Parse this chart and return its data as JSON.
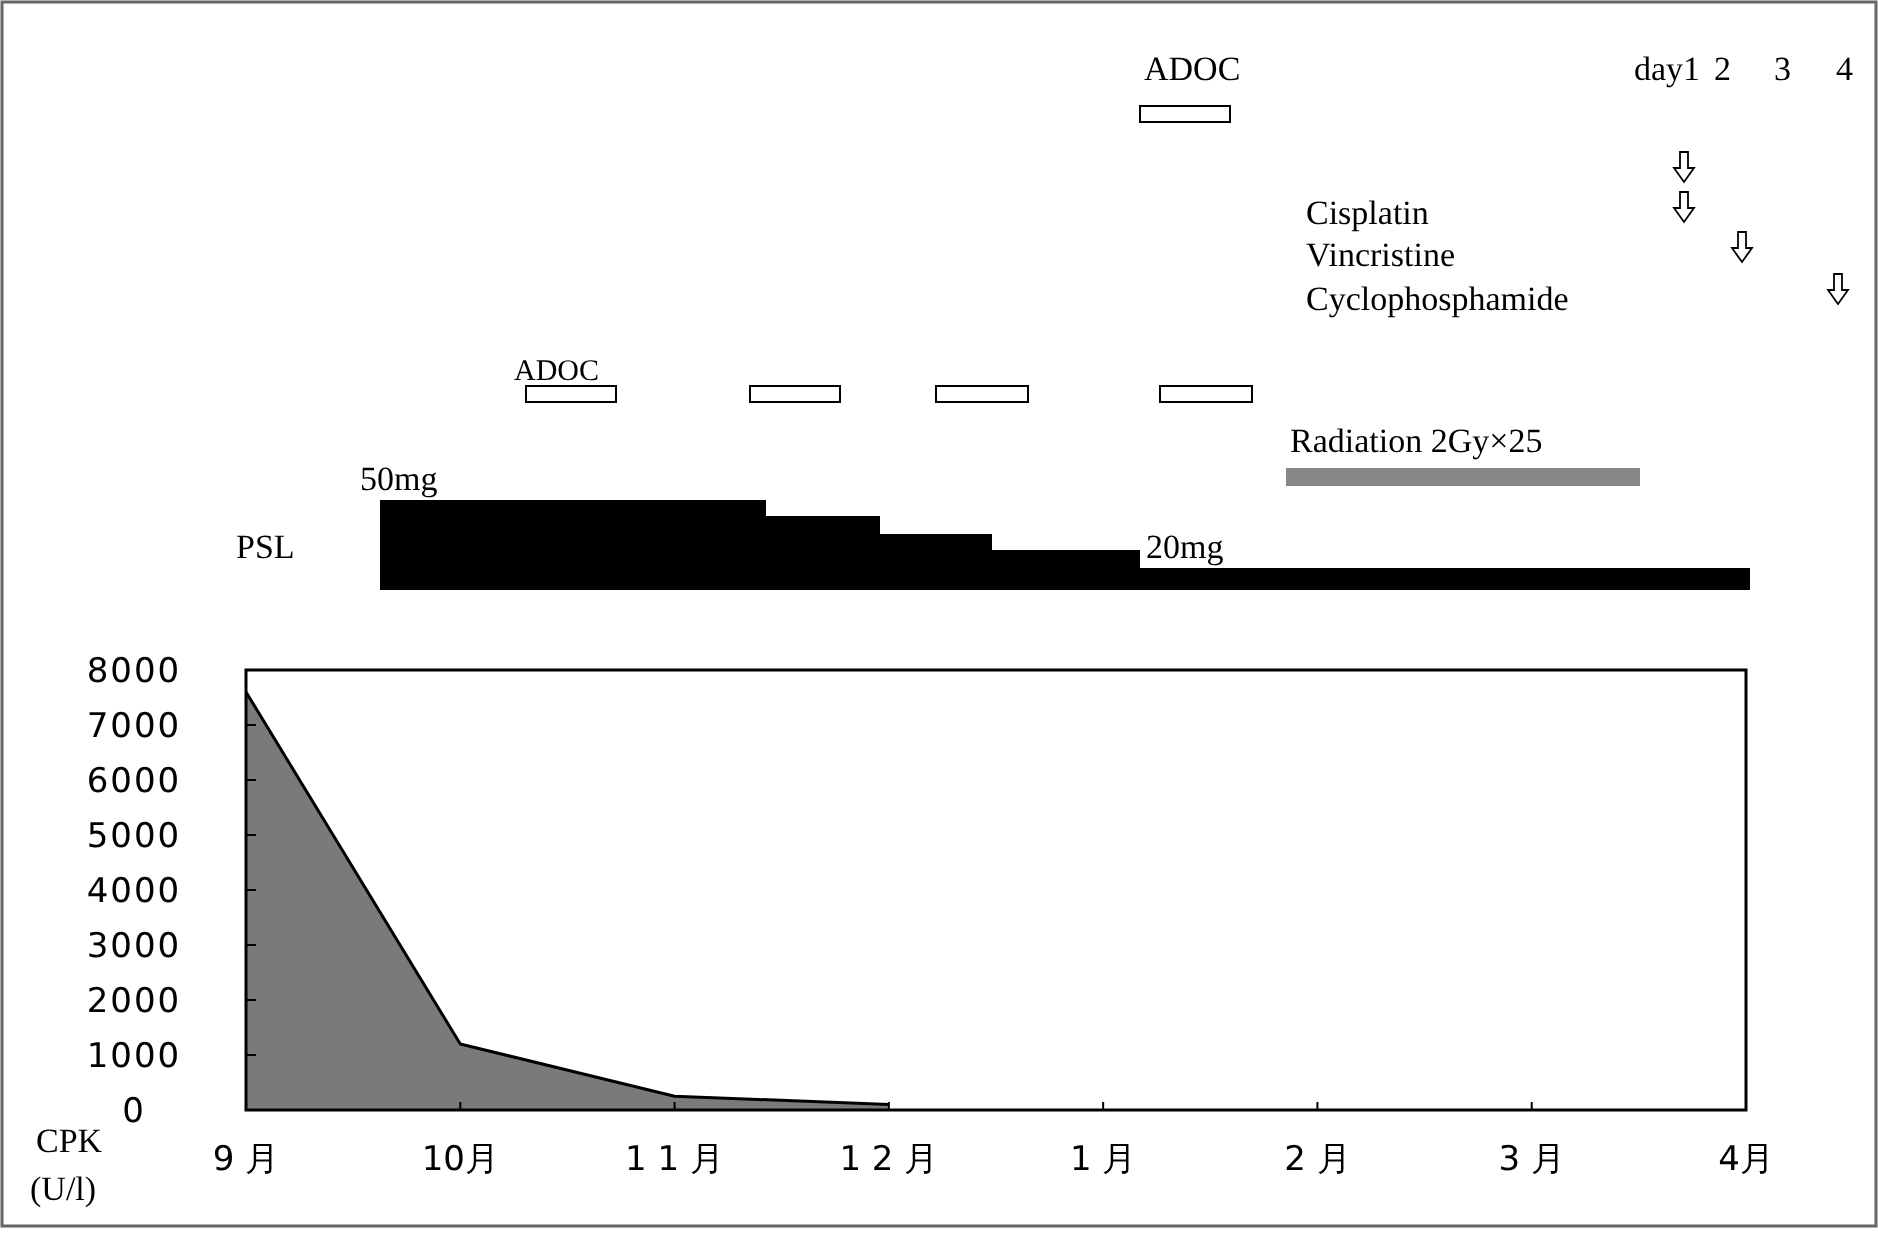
{
  "chart_data": {
    "type": "area",
    "ylabel": "CPK (U/l)",
    "categories": [
      "9 月",
      "10月",
      "1 1 月",
      "1 2 月",
      "1 月",
      "2 月",
      "3 月",
      "4月"
    ],
    "series": [
      {
        "color": "#7a7a7a",
        "values": [
          7600,
          1200,
          250,
          100,
          null,
          null,
          null,
          null
        ]
      }
    ],
    "ylim": [
      0,
      8000
    ],
    "yticks": [
      0,
      1000,
      2000,
      3000,
      4000,
      5000,
      6000,
      7000,
      8000
    ],
    "grid": false,
    "annotations": [
      "ADOC",
      "day1",
      "2",
      "3",
      "4",
      "Cisplatin",
      "Vincristine",
      "Cyclophosphamide",
      "ADOC",
      "Radiation 2Gy×25",
      "50mg",
      "PSL",
      "20mg"
    ]
  }
}
